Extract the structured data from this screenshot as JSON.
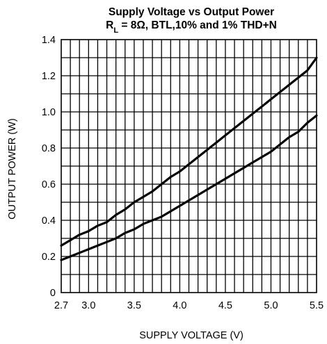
{
  "chart_data": {
    "type": "line",
    "title_line1": "Supply Voltage vs Output Power",
    "title_line2_prefix": "R",
    "title_line2_sub": "L",
    "title_line2_rest": " = 8Ω, BTL,10% and 1% THD+N",
    "xlabel": "SUPPLY VOLTAGE (V)",
    "ylabel": "OUTPUT POWER (W)",
    "xlim": [
      2.7,
      5.5
    ],
    "ylim": [
      0,
      1.4
    ],
    "grid": true,
    "x_minor_step": 0.1,
    "y_minor_step": 0.1,
    "x_ticks": [
      {
        "value": 2.7,
        "label": "2.7"
      },
      {
        "value": 3.0,
        "label": "3.0"
      },
      {
        "value": 3.5,
        "label": "3.5"
      },
      {
        "value": 4.0,
        "label": "4.0"
      },
      {
        "value": 4.5,
        "label": "4.5"
      },
      {
        "value": 5.0,
        "label": "5.0"
      },
      {
        "value": 5.5,
        "label": "5.5"
      }
    ],
    "y_ticks": [
      {
        "value": 0,
        "label": "0"
      },
      {
        "value": 0.2,
        "label": "0.2"
      },
      {
        "value": 0.4,
        "label": "0.4"
      },
      {
        "value": 0.6,
        "label": "0.6"
      },
      {
        "value": 0.8,
        "label": "0.8"
      },
      {
        "value": 1.0,
        "label": "1.0"
      },
      {
        "value": 1.2,
        "label": "1.2"
      },
      {
        "value": 1.4,
        "label": "1.4"
      }
    ],
    "series": [
      {
        "x": [
          2.7,
          2.8,
          2.9,
          3.0,
          3.1,
          3.2,
          3.3,
          3.4,
          3.5,
          3.6,
          3.7,
          3.8,
          3.9,
          4.0,
          4.1,
          4.2,
          4.3,
          4.4,
          4.5,
          4.6,
          4.7,
          4.8,
          4.9,
          5.0,
          5.1,
          5.2,
          5.3,
          5.4,
          5.5
        ],
        "values": [
          0.26,
          0.29,
          0.32,
          0.34,
          0.37,
          0.39,
          0.43,
          0.46,
          0.5,
          0.53,
          0.56,
          0.6,
          0.64,
          0.67,
          0.71,
          0.75,
          0.79,
          0.83,
          0.87,
          0.91,
          0.95,
          0.99,
          1.03,
          1.07,
          1.11,
          1.15,
          1.19,
          1.23,
          1.3
        ]
      },
      {
        "x": [
          2.7,
          2.8,
          2.9,
          3.0,
          3.1,
          3.2,
          3.3,
          3.4,
          3.5,
          3.6,
          3.7,
          3.8,
          3.9,
          4.0,
          4.1,
          4.2,
          4.3,
          4.4,
          4.5,
          4.6,
          4.7,
          4.8,
          4.9,
          5.0,
          5.1,
          5.2,
          5.3,
          5.4,
          5.5
        ],
        "values": [
          0.18,
          0.2,
          0.22,
          0.24,
          0.26,
          0.28,
          0.3,
          0.33,
          0.35,
          0.38,
          0.4,
          0.42,
          0.45,
          0.48,
          0.51,
          0.54,
          0.57,
          0.6,
          0.63,
          0.66,
          0.69,
          0.72,
          0.75,
          0.78,
          0.82,
          0.86,
          0.89,
          0.94,
          0.98
        ]
      }
    ]
  }
}
